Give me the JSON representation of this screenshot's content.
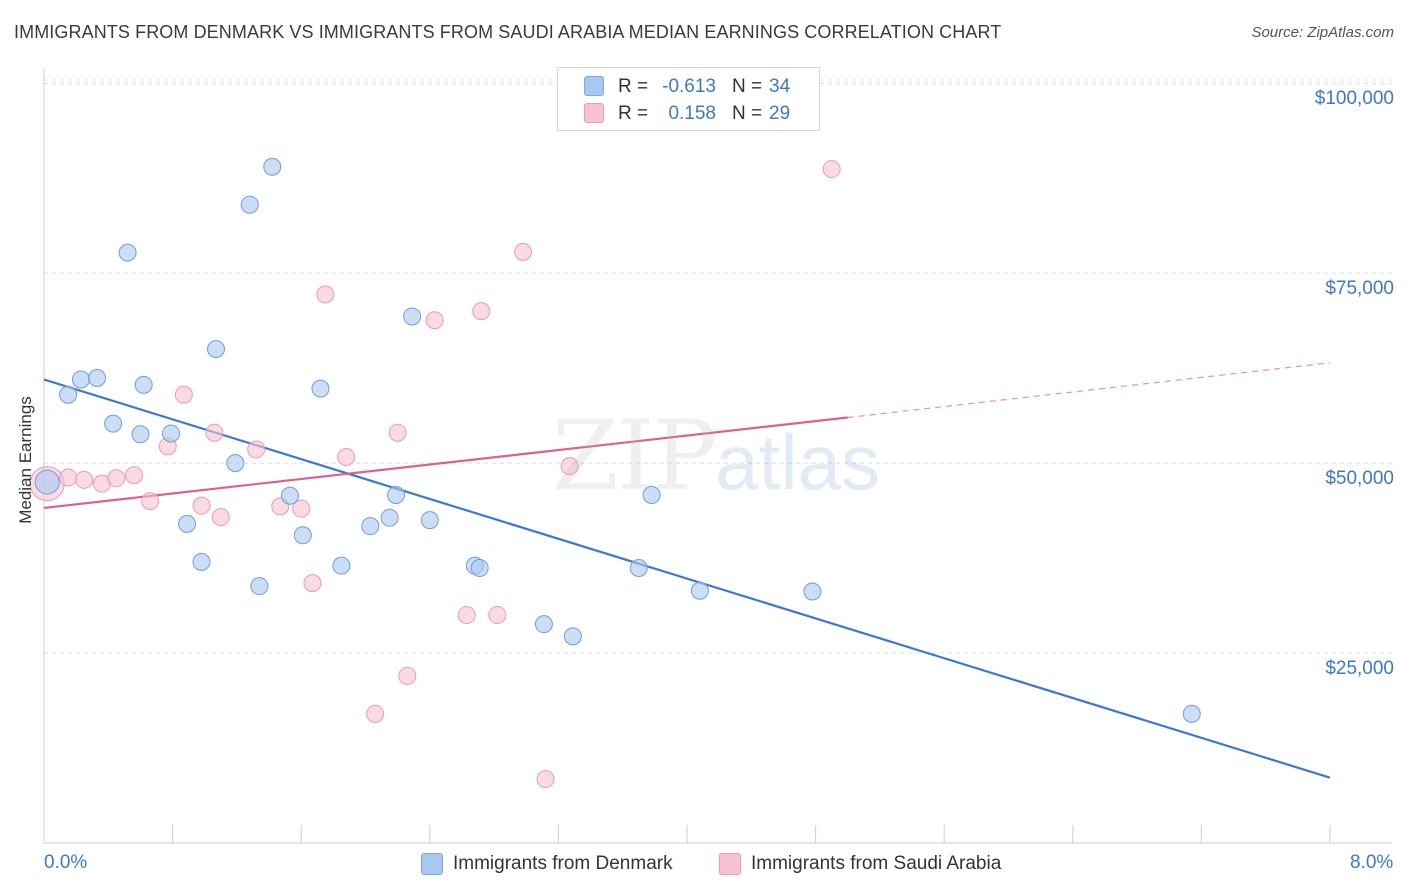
{
  "title": "IMMIGRANTS FROM DENMARK VS IMMIGRANTS FROM SAUDI ARABIA MEDIAN EARNINGS CORRELATION CHART",
  "source": "Source: ZipAtlas.com",
  "watermark": {
    "zip": "ZIP",
    "atlas": "atlas"
  },
  "legend": {
    "denmark": {
      "r_label": "R =",
      "r_value": "-0.613",
      "n_label": "N =",
      "n_value": "34",
      "color": "#a9c8f0",
      "border": "#7fa8e0"
    },
    "saudi": {
      "r_label": "R =",
      "r_value": "0.158",
      "n_label": "N =",
      "n_value": "29",
      "color": "#f7c1d1",
      "border": "#ee9ab5"
    }
  },
  "bottom_legend": {
    "denmark": "Immigrants from Denmark",
    "saudi": "Immigrants from Saudi Arabia"
  },
  "chart_data": {
    "type": "scatter",
    "title": "IMMIGRANTS FROM DENMARK VS IMMIGRANTS FROM SAUDI ARABIA MEDIAN EARNINGS CORRELATION CHART",
    "xlabel": "",
    "ylabel": "Median Earnings",
    "xlim": [
      0,
      8
    ],
    "ylim": [
      0,
      102000
    ],
    "x_tick_labels": [
      "0.0%",
      "8.0%"
    ],
    "y_ticks": [
      25000,
      50000,
      75000,
      100000
    ],
    "y_tick_labels": [
      "$25,000",
      "$50,000",
      "$75,000",
      "$100,000"
    ],
    "grid": true,
    "series": [
      {
        "name": "Immigrants from Denmark",
        "color": "#3b78d0",
        "fill": "#a9c8f0",
        "points": [
          [
            0.02,
            47500
          ],
          [
            0.15,
            59000
          ],
          [
            0.23,
            61000
          ],
          [
            0.33,
            61200
          ],
          [
            0.43,
            55200
          ],
          [
            0.52,
            77700
          ],
          [
            0.62,
            60300
          ],
          [
            0.6,
            53800
          ],
          [
            0.79,
            53900
          ],
          [
            0.89,
            42000
          ],
          [
            0.98,
            37000
          ],
          [
            1.07,
            65000
          ],
          [
            1.19,
            50000
          ],
          [
            1.28,
            84000
          ],
          [
            1.34,
            33800
          ],
          [
            1.42,
            89000
          ],
          [
            1.53,
            45700
          ],
          [
            1.61,
            40500
          ],
          [
            1.72,
            59800
          ],
          [
            1.85,
            36500
          ],
          [
            2.03,
            41700
          ],
          [
            2.15,
            42800
          ],
          [
            2.19,
            45800
          ],
          [
            2.29,
            69300
          ],
          [
            2.4,
            42500
          ],
          [
            2.68,
            36500
          ],
          [
            2.71,
            36200
          ],
          [
            3.11,
            28800
          ],
          [
            3.29,
            27200
          ],
          [
            3.7,
            36200
          ],
          [
            3.78,
            45800
          ],
          [
            4.08,
            33200
          ],
          [
            4.78,
            33100
          ],
          [
            7.14,
            17000
          ]
        ],
        "trend": {
          "x": [
            0.0,
            8.0
          ],
          "y": [
            61000,
            8600
          ]
        }
      },
      {
        "name": "Immigrants from Saudi Arabia",
        "color": "#e0608a",
        "fill": "#f7c1d1",
        "points": [
          [
            0.02,
            47300
          ],
          [
            0.15,
            48100
          ],
          [
            0.25,
            47800
          ],
          [
            0.36,
            47300
          ],
          [
            0.45,
            48000
          ],
          [
            0.56,
            48400
          ],
          [
            0.66,
            45000
          ],
          [
            0.77,
            52200
          ],
          [
            0.87,
            59000
          ],
          [
            0.98,
            44400
          ],
          [
            1.1,
            42900
          ],
          [
            1.06,
            54000
          ],
          [
            1.32,
            51800
          ],
          [
            1.47,
            44300
          ],
          [
            1.6,
            44000
          ],
          [
            1.67,
            34200
          ],
          [
            1.75,
            72200
          ],
          [
            1.88,
            50800
          ],
          [
            2.06,
            17000
          ],
          [
            2.2,
            54000
          ],
          [
            2.26,
            22000
          ],
          [
            2.43,
            68800
          ],
          [
            2.63,
            30000
          ],
          [
            2.72,
            70000
          ],
          [
            2.82,
            30000
          ],
          [
            2.98,
            77800
          ],
          [
            3.12,
            8400
          ],
          [
            3.27,
            49600
          ],
          [
            4.9,
            88700
          ]
        ],
        "trend": {
          "x": [
            0.0,
            5.0
          ],
          "y": [
            44100,
            56000
          ]
        },
        "trend_extension": {
          "x": [
            5.0,
            8.0
          ],
          "y": [
            56000,
            63200
          ]
        }
      }
    ]
  }
}
